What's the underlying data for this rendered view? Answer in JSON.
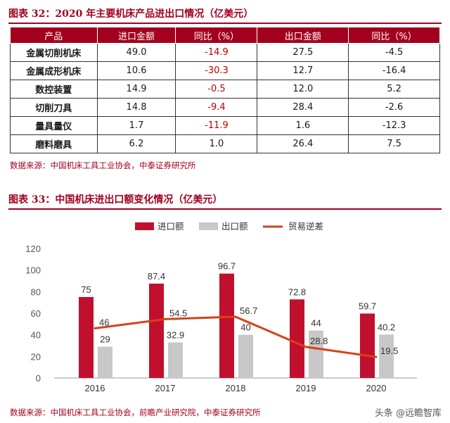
{
  "table_title": "图表 32：2020 年主要机床产品进出口情况（亿美元）",
  "table": {
    "headers": [
      "产品",
      "进口金额",
      "同比（%）",
      "出口金额",
      "同比（%）"
    ],
    "rows": [
      {
        "name": "金属切削机床",
        "import": "49.0",
        "import_yoy": "-14.9",
        "export": "27.5",
        "export_yoy": "-4.5"
      },
      {
        "name": "金属成形机床",
        "import": "10.6",
        "import_yoy": "-30.3",
        "export": "12.7",
        "export_yoy": "-16.4"
      },
      {
        "name": "数控装置",
        "import": "14.9",
        "import_yoy": "-0.5",
        "export": "12.0",
        "export_yoy": "5.2"
      },
      {
        "name": "切削刀具",
        "import": "14.8",
        "import_yoy": "-9.4",
        "export": "28.4",
        "export_yoy": "-2.6"
      },
      {
        "name": "量具量仪",
        "import": "1.7",
        "import_yoy": "-11.9",
        "export": "1.6",
        "export_yoy": "-12.3"
      },
      {
        "name": "磨料磨具",
        "import": "6.2",
        "import_yoy": "1.0",
        "export": "26.4",
        "export_yoy": "7.5"
      }
    ]
  },
  "source1": "数据来源：中国机床工具工业协会，中泰证券研究所",
  "chart_title": "图表 33：中国机床进出口额变化情况（亿美元）",
  "source2": "数据来源：中国机床工具工业协会，前瞻产业研究院，中泰证券研究所",
  "watermark": "头条 @远瞻智库",
  "colors": {
    "import": "#c0102d",
    "export": "#c8c8c8",
    "balance": "#d8401c",
    "brand": "#a3001e"
  },
  "chart_data": {
    "type": "bar",
    "categories": [
      "2016",
      "2017",
      "2018",
      "2019",
      "2020"
    ],
    "series": [
      {
        "name": "进口额",
        "type": "bar",
        "values": [
          75,
          87.4,
          96.7,
          72.8,
          59.7
        ],
        "labels": [
          "75",
          "87.4",
          "96.7",
          "72.8",
          "59.7"
        ]
      },
      {
        "name": "出口额",
        "type": "bar",
        "values": [
          29,
          32.9,
          40,
          44,
          40.2
        ],
        "labels": [
          "29",
          "32.9",
          "40",
          "44",
          "40.2"
        ]
      },
      {
        "name": "贸易逆差",
        "type": "line",
        "values": [
          46,
          54.5,
          56.7,
          28.8,
          19.5
        ],
        "labels": [
          "46",
          "54.5",
          "56.7",
          "28.8",
          "19.5"
        ]
      }
    ],
    "ylim": [
      0,
      120
    ],
    "yticks": [
      "0",
      "20",
      "40",
      "60",
      "80",
      "100",
      "120"
    ],
    "legend_position": "top-center",
    "grid": false
  }
}
